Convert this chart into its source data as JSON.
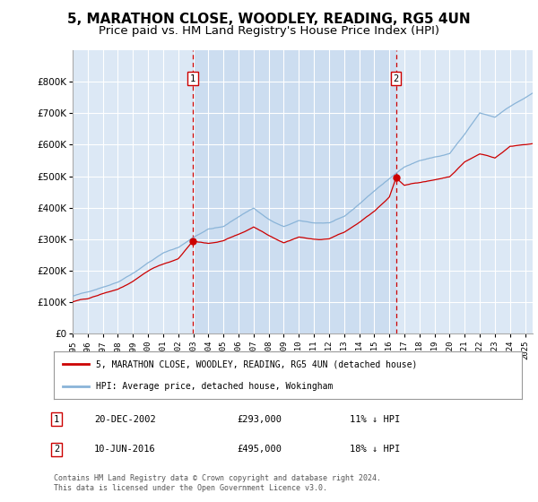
{
  "title": "5, MARATHON CLOSE, WOODLEY, READING, RG5 4UN",
  "subtitle": "Price paid vs. HM Land Registry's House Price Index (HPI)",
  "title_fontsize": 11,
  "subtitle_fontsize": 9.5,
  "background_color": "#ffffff",
  "plot_background_color": "#dce8f5",
  "plot_bg_between_sales": "#ccddf0",
  "grid_color": "#ffffff",
  "hpi_color": "#8ab4d8",
  "price_color": "#cc0000",
  "sale1_date_num": 2002.97,
  "sale1_price": 293000,
  "sale1_label": "20-DEC-2002",
  "sale1_hpi_pct": "11% ↓ HPI",
  "sale2_date_num": 2016.44,
  "sale2_price": 495000,
  "sale2_label": "10-JUN-2016",
  "sale2_hpi_pct": "18% ↓ HPI",
  "legend_line1": "5, MARATHON CLOSE, WOODLEY, READING, RG5 4UN (detached house)",
  "legend_line2": "HPI: Average price, detached house, Wokingham",
  "footer": "Contains HM Land Registry data © Crown copyright and database right 2024.\nThis data is licensed under the Open Government Licence v3.0.",
  "ylim": [
    0,
    900000
  ],
  "xlim_start": 1995.0,
  "xlim_end": 2025.5,
  "yticks": [
    0,
    100000,
    200000,
    300000,
    400000,
    500000,
    600000,
    700000,
    800000
  ],
  "xticks": [
    1995,
    1996,
    1997,
    1998,
    1999,
    2000,
    2001,
    2002,
    2003,
    2004,
    2005,
    2006,
    2007,
    2008,
    2009,
    2010,
    2011,
    2012,
    2013,
    2014,
    2015,
    2016,
    2017,
    2018,
    2019,
    2020,
    2021,
    2022,
    2023,
    2024,
    2025
  ]
}
